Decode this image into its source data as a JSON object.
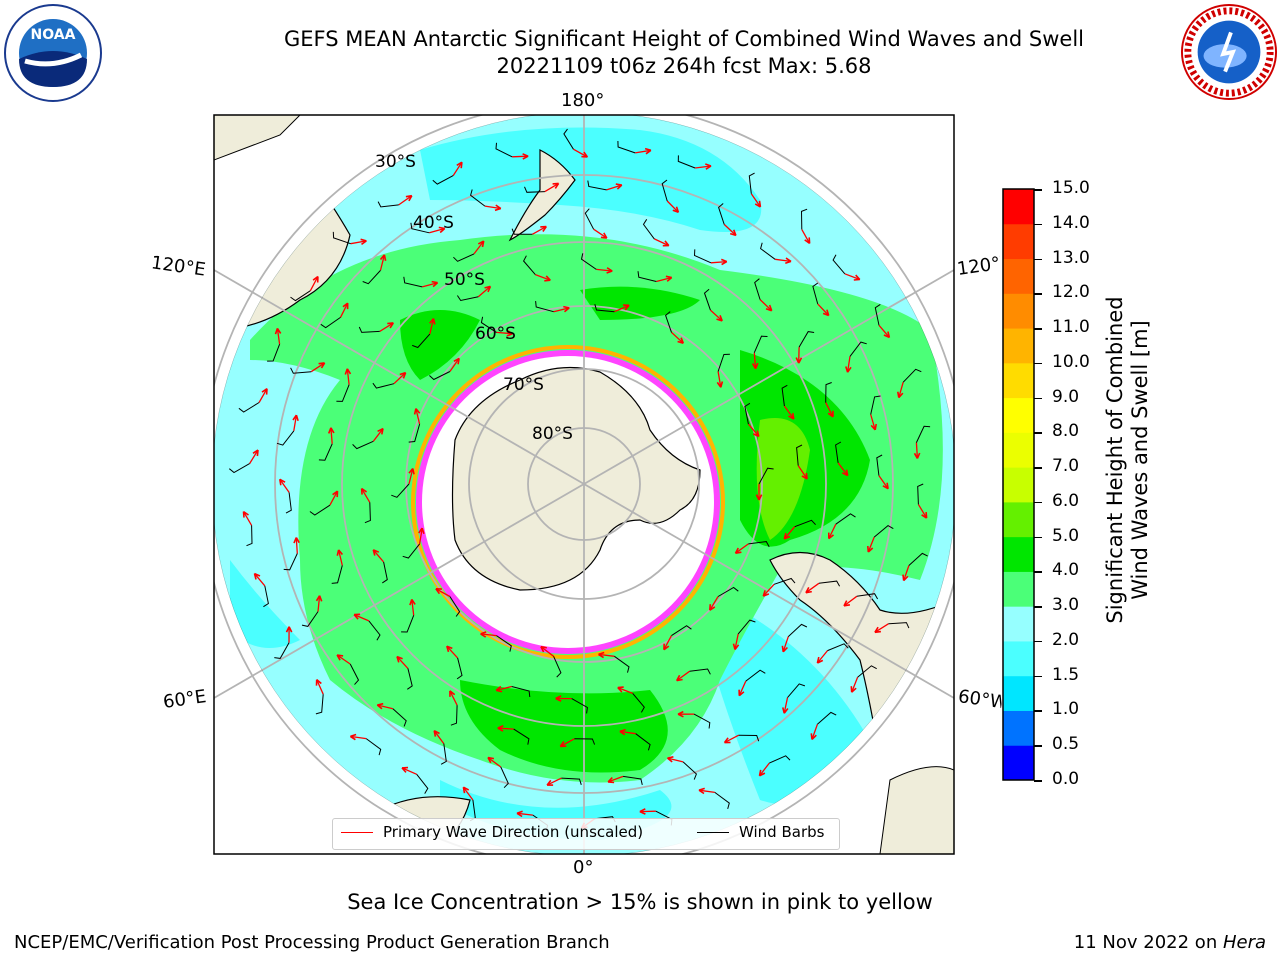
{
  "title_line1": "GEFS MEAN Antarctic Significant Height of Combined Wind Waves and Swell",
  "title_line2": "20221109 t06z 264h fcst   Max: 5.68",
  "longitude_labels": {
    "top": "180°",
    "bottom": "0°",
    "upper_left": "120°E",
    "upper_right": "120°W",
    "lower_left": "60°E",
    "lower_right": "60°W"
  },
  "latitude_labels": [
    "30°S",
    "40°S",
    "50°S",
    "60°S",
    "70°S",
    "80°S"
  ],
  "legend": {
    "wave_label": "Primary Wave Direction (unscaled)",
    "wave_color": "#ff0000",
    "wind_label": "Wind Barbs",
    "wind_color": "#000000"
  },
  "colorbar": {
    "title_line1": "Significant Height of Combined",
    "title_line2": "Wind Waves and Swell [m]",
    "ticks": [
      "15.0",
      "14.0",
      "13.0",
      "12.0",
      "11.0",
      "10.0",
      "9.0",
      "8.0",
      "7.0",
      "6.0",
      "5.0",
      "4.0",
      "3.0",
      "2.0",
      "1.5",
      "1.0",
      "0.5",
      "0.0"
    ],
    "colors": [
      "#0000ff",
      "#0073ff",
      "#00e6ff",
      "#4bffff",
      "#96ffff",
      "#4bff78",
      "#00e600",
      "#64f000",
      "#c8ff00",
      "#ebff00",
      "#ffff00",
      "#ffdc00",
      "#ffb400",
      "#ff8c00",
      "#ff6400",
      "#ff3c00",
      "#ff0000"
    ]
  },
  "map_colors": {
    "ocean_light": "#96ffff",
    "ocean_mid": "#4bffff",
    "band_green": "#4bff78",
    "band_dark_green": "#00e600",
    "band_yellow_green": "#64f000",
    "land": "#efedda",
    "sea_ice": "#ff44ff",
    "sea_ice_edge": "#ffb400",
    "grid": "#b4b4b4"
  },
  "sea_ice_note": "Sea Ice Concentration > 15% is shown in pink to yellow",
  "footer_left": "NCEP/EMC/Verification Post Processing Product Generation Branch",
  "footer_right_date": "11 Nov 2022 on ",
  "footer_right_host": "Hera",
  "logos": {
    "left": "NOAA",
    "right_text": "NATIONAL WEATHER SERVICE"
  }
}
